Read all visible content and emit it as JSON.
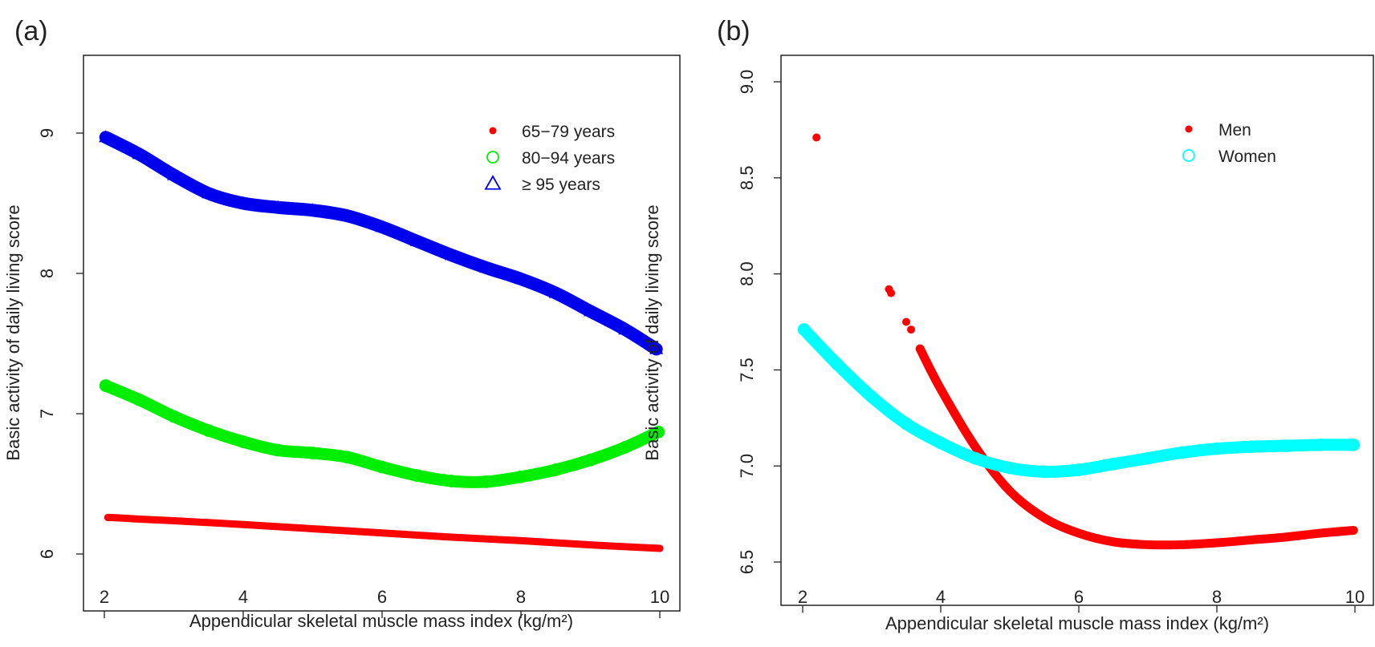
{
  "chart_data": [
    {
      "type": "scatter",
      "panel_label": "(a)",
      "xlabel": "Appendicular skeletal muscle mass index (kg/m²)",
      "ylabel": "Basic activity of daily living score",
      "xlim": [
        1.68,
        10.32
      ],
      "ylim": [
        5.6,
        9.55
      ],
      "xticks": [
        "2",
        "4",
        "6",
        "8",
        "10"
      ],
      "yticks": [
        "6",
        "7",
        "8",
        "9"
      ],
      "legend_position": "top-right",
      "series": [
        {
          "name": "65−79 years",
          "marker": "filled-circle",
          "color": "#ff0000",
          "points": [
            [
              2.05,
              6.26
            ],
            [
              2.1,
              6.26
            ],
            [
              2.3,
              6.255
            ],
            [
              2.45,
              6.25
            ],
            [
              3,
              6.237
            ],
            [
              4,
              6.21
            ],
            [
              5,
              6.18
            ],
            [
              6,
              6.15
            ],
            [
              7,
              6.12
            ],
            [
              8,
              6.095
            ],
            [
              9,
              6.065
            ],
            [
              10,
              6.04
            ]
          ]
        },
        {
          "name": "80−94 years",
          "marker": "open-circle",
          "color": "#00ee00",
          "points": [
            [
              2.02,
              7.2
            ],
            [
              2.5,
              7.1
            ],
            [
              3,
              6.98
            ],
            [
              3.5,
              6.88
            ],
            [
              4,
              6.8
            ],
            [
              4.5,
              6.74
            ],
            [
              5,
              6.72
            ],
            [
              5.5,
              6.69
            ],
            [
              6,
              6.62
            ],
            [
              6.5,
              6.56
            ],
            [
              7,
              6.52
            ],
            [
              7.5,
              6.515
            ],
            [
              8,
              6.55
            ],
            [
              8.5,
              6.6
            ],
            [
              9,
              6.67
            ],
            [
              9.5,
              6.76
            ],
            [
              9.98,
              6.87
            ]
          ]
        },
        {
          "name": "≥ 95 years",
          "marker": "open-triangle",
          "color": "#0000ee",
          "points": [
            [
              2.02,
              8.97
            ],
            [
              2.5,
              8.85
            ],
            [
              3,
              8.7
            ],
            [
              3.5,
              8.57
            ],
            [
              4,
              8.5
            ],
            [
              4.5,
              8.47
            ],
            [
              5,
              8.45
            ],
            [
              5.5,
              8.41
            ],
            [
              6,
              8.33
            ],
            [
              6.5,
              8.23
            ],
            [
              7,
              8.13
            ],
            [
              7.5,
              8.04
            ],
            [
              8,
              7.96
            ],
            [
              8.5,
              7.86
            ],
            [
              9,
              7.73
            ],
            [
              9.5,
              7.6
            ],
            [
              9.95,
              7.46
            ]
          ]
        }
      ]
    },
    {
      "type": "scatter",
      "panel_label": "(b)",
      "xlabel": "Appendicular skeletal muscle mass index (kg/m²)",
      "ylabel": "Basic activity of daily living score",
      "xlim": [
        1.66,
        10.34
      ],
      "ylim": [
        6.27,
        9.14
      ],
      "xticks": [
        "2",
        "4",
        "6",
        "8",
        "10"
      ],
      "yticks": [
        "6.5",
        "7.0",
        "7.5",
        "8.0",
        "8.5",
        "9.0"
      ],
      "legend_position": "top-right",
      "series": [
        {
          "name": "Men",
          "marker": "filled-circle",
          "color": "#ff0000",
          "isolated_points": [
            [
              2.2,
              8.71
            ],
            [
              3.25,
              7.92
            ],
            [
              3.28,
              7.9
            ],
            [
              3.5,
              7.75
            ],
            [
              3.57,
              7.71
            ]
          ],
          "points": [
            [
              3.7,
              7.61
            ],
            [
              4,
              7.4
            ],
            [
              4.5,
              7.1
            ],
            [
              5,
              6.87
            ],
            [
              5.5,
              6.73
            ],
            [
              6,
              6.65
            ],
            [
              6.5,
              6.605
            ],
            [
              7,
              6.59
            ],
            [
              7.5,
              6.59
            ],
            [
              8,
              6.6
            ],
            [
              8.5,
              6.615
            ],
            [
              9,
              6.63
            ],
            [
              9.5,
              6.65
            ],
            [
              9.98,
              6.665
            ]
          ]
        },
        {
          "name": "Women",
          "marker": "open-circle",
          "color": "#00ffff",
          "points": [
            [
              2.02,
              7.71
            ],
            [
              2.5,
              7.53
            ],
            [
              3,
              7.36
            ],
            [
              3.5,
              7.22
            ],
            [
              4,
              7.12
            ],
            [
              4.5,
              7.04
            ],
            [
              5,
              6.99
            ],
            [
              5.5,
              6.97
            ],
            [
              6,
              6.98
            ],
            [
              6.5,
              7.01
            ],
            [
              7,
              7.04
            ],
            [
              7.5,
              7.07
            ],
            [
              8,
              7.09
            ],
            [
              8.5,
              7.1
            ],
            [
              9,
              7.105
            ],
            [
              9.5,
              7.11
            ],
            [
              9.98,
              7.11
            ]
          ]
        }
      ]
    }
  ]
}
